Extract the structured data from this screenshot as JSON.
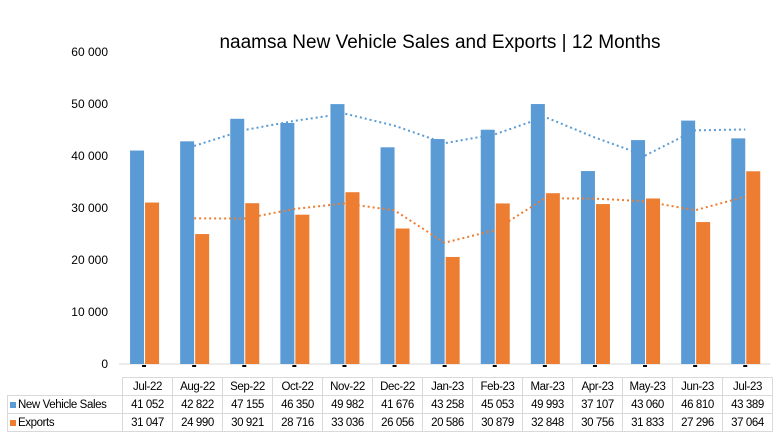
{
  "chart_data": {
    "type": "bar",
    "title": "naamsa New Vehicle Sales and Exports | 12 Months",
    "categories": [
      "Jul-22",
      "Aug-22",
      "Sep-22",
      "Oct-22",
      "Nov-22",
      "Dec-22",
      "Jan-23",
      "Feb-23",
      "Mar-23",
      "Apr-23",
      "May-23",
      "Jun-23",
      "Jul-23"
    ],
    "series": [
      {
        "name": "New Vehicle Sales",
        "color": "#5b9bd5",
        "values": [
          41052,
          42822,
          47155,
          46350,
          49982,
          41676,
          43258,
          45053,
          49993,
          37107,
          43060,
          46810,
          43389
        ],
        "labels": [
          "41 052",
          "42 822",
          "47 155",
          "46 350",
          "49 982",
          "41 676",
          "43 258",
          "45 053",
          "49 993",
          "37 107",
          "43 060",
          "46 810",
          "43 389"
        ]
      },
      {
        "name": "Exports",
        "color": "#ed7d31",
        "values": [
          31047,
          24990,
          30921,
          28716,
          33036,
          26056,
          20586,
          30879,
          32848,
          30756,
          31833,
          27296,
          37064
        ],
        "labels": [
          "31 047",
          "24 990",
          "30 921",
          "28 716",
          "33 036",
          "26 056",
          "20 586",
          "30 879",
          "32 848",
          "30 756",
          "31 833",
          "27 296",
          "37 064"
        ]
      }
    ],
    "trendlines": "2-period moving average (dotted)",
    "ylim": [
      0,
      60000
    ],
    "yticks": [
      0,
      10000,
      20000,
      30000,
      40000,
      50000,
      60000
    ],
    "ytick_labels": [
      "0",
      "10 000",
      "20 000",
      "30 000",
      "40 000",
      "50 000",
      "60 000"
    ],
    "grid": false,
    "legend": "data-table-bottom"
  }
}
